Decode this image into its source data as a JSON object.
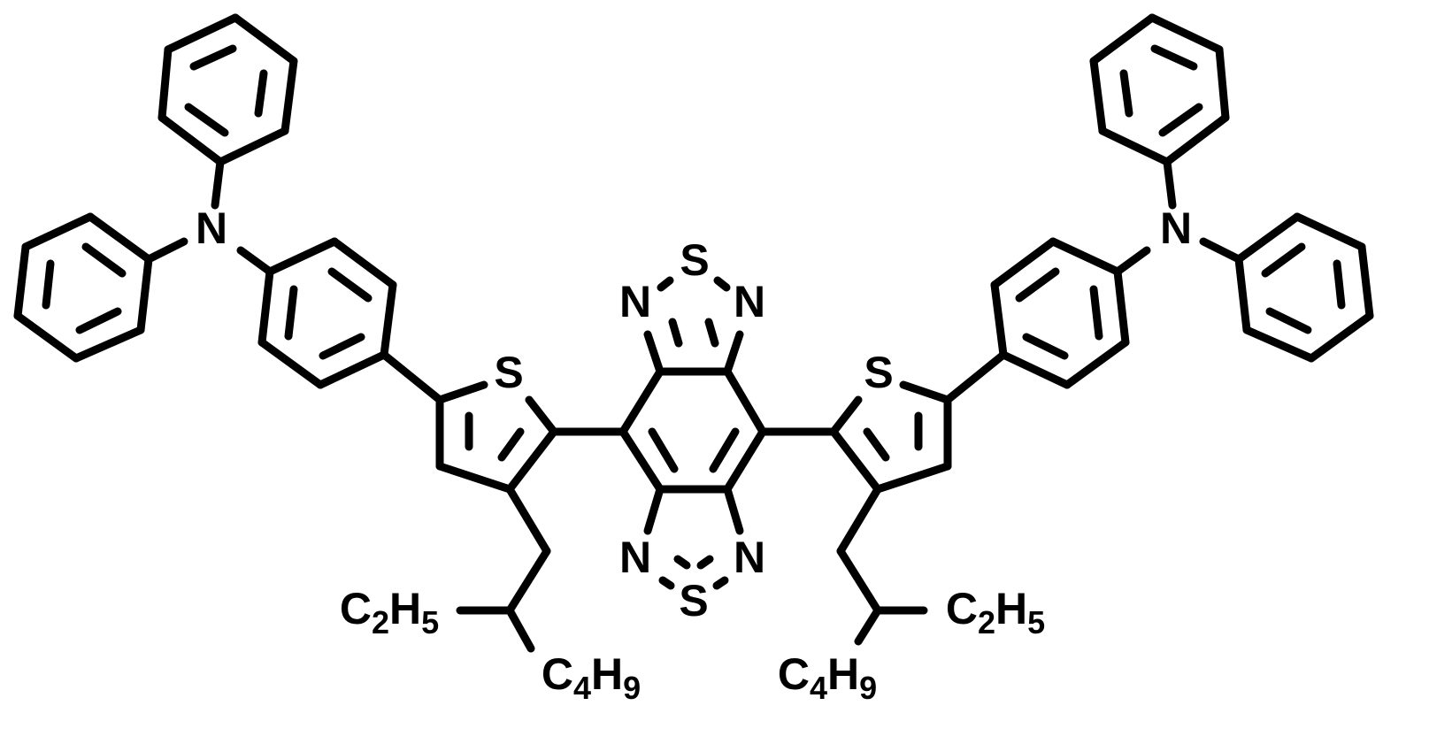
{
  "atoms": {
    "core": [
      "N",
      "S",
      "N",
      "N",
      "S",
      "N"
    ],
    "left": [
      "S",
      "N"
    ],
    "right": [
      "S",
      "N"
    ]
  },
  "groups": {
    "left": [
      "C2H5",
      "C4H9"
    ],
    "right": [
      "C2H5",
      "C4H9"
    ]
  }
}
